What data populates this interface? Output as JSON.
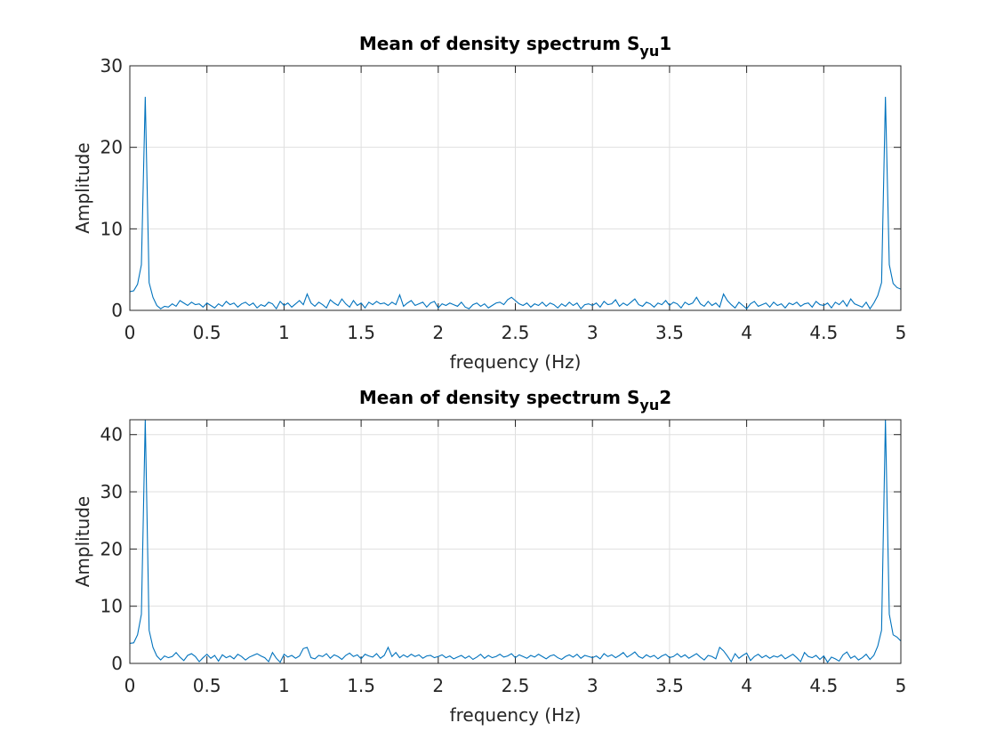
{
  "chart_data": [
    {
      "type": "line",
      "title": [
        "Mean of density spectrum S",
        "yu",
        "1"
      ],
      "xlabel": "frequency (Hz)",
      "ylabel": "Amplitude",
      "xlim": [
        0,
        5
      ],
      "xticks": [
        0,
        0.5,
        1,
        1.5,
        2,
        2.5,
        3,
        3.5,
        4,
        4.5,
        5
      ],
      "ylim": [
        0,
        30
      ],
      "yticks": [
        0,
        10,
        20,
        30
      ],
      "grid": true,
      "x": [
        0,
        0.025,
        0.05,
        0.075,
        0.1,
        0.125,
        0.15,
        0.175,
        0.2,
        0.225,
        0.25,
        0.275,
        0.3,
        0.325,
        0.35,
        0.375,
        0.4,
        0.425,
        0.45,
        0.475,
        0.5,
        0.525,
        0.55,
        0.575,
        0.6,
        0.625,
        0.65,
        0.675,
        0.7,
        0.725,
        0.75,
        0.775,
        0.8,
        0.825,
        0.85,
        0.875,
        0.9,
        0.925,
        0.95,
        0.975,
        1,
        1.025,
        1.05,
        1.075,
        1.1,
        1.125,
        1.15,
        1.175,
        1.2,
        1.225,
        1.25,
        1.275,
        1.3,
        1.325,
        1.35,
        1.375,
        1.4,
        1.425,
        1.45,
        1.475,
        1.5,
        1.525,
        1.55,
        1.575,
        1.6,
        1.625,
        1.65,
        1.675,
        1.7,
        1.725,
        1.75,
        1.775,
        1.8,
        1.825,
        1.85,
        1.875,
        1.9,
        1.925,
        1.95,
        1.975,
        2,
        2.025,
        2.05,
        2.075,
        2.1,
        2.125,
        2.15,
        2.175,
        2.2,
        2.225,
        2.25,
        2.275,
        2.3,
        2.325,
        2.35,
        2.375,
        2.4,
        2.425,
        2.45,
        2.475,
        2.5,
        2.525,
        2.55,
        2.575,
        2.6,
        2.625,
        2.65,
        2.675,
        2.7,
        2.725,
        2.75,
        2.775,
        2.8,
        2.825,
        2.85,
        2.875,
        2.9,
        2.925,
        2.95,
        2.975,
        3,
        3.025,
        3.05,
        3.075,
        3.1,
        3.125,
        3.15,
        3.175,
        3.2,
        3.225,
        3.25,
        3.275,
        3.3,
        3.325,
        3.35,
        3.375,
        3.4,
        3.425,
        3.45,
        3.475,
        3.5,
        3.525,
        3.55,
        3.575,
        3.6,
        3.625,
        3.65,
        3.675,
        3.7,
        3.725,
        3.75,
        3.775,
        3.8,
        3.825,
        3.85,
        3.875,
        3.9,
        3.925,
        3.95,
        3.975,
        4,
        4.025,
        4.05,
        4.075,
        4.1,
        4.125,
        4.15,
        4.175,
        4.2,
        4.225,
        4.25,
        4.275,
        4.3,
        4.325,
        4.35,
        4.375,
        4.4,
        4.425,
        4.45,
        4.475,
        4.5,
        4.525,
        4.55,
        4.575,
        4.6,
        4.625,
        4.65,
        4.675,
        4.7,
        4.725,
        4.75,
        4.775,
        4.8,
        4.825,
        4.85,
        4.875,
        4.9,
        4.925,
        4.95,
        4.975,
        5
      ],
      "series": [
        {
          "color": "#0072bd",
          "values": [
            2.3,
            2.4,
            3.2,
            5.6,
            26.2,
            3.4,
            1.6,
            0.6,
            0.2,
            0.5,
            0.4,
            0.8,
            0.5,
            1.2,
            0.9,
            0.6,
            1.0,
            0.7,
            0.8,
            0.4,
            0.9,
            0.6,
            0.3,
            0.8,
            0.5,
            1.1,
            0.7,
            0.9,
            0.4,
            0.8,
            1.0,
            0.6,
            0.9,
            0.3,
            0.7,
            0.5,
            1.0,
            0.8,
            0.2,
            1.1,
            0.6,
            0.9,
            0.4,
            0.8,
            1.2,
            0.7,
            2.0,
            0.9,
            0.5,
            1.0,
            0.7,
            0.3,
            1.3,
            0.9,
            0.6,
            1.4,
            0.8,
            0.4,
            1.2,
            0.6,
            0.9,
            0.3,
            1.0,
            0.7,
            1.1,
            0.8,
            0.9,
            0.6,
            1.0,
            0.7,
            1.9,
            0.5,
            0.9,
            1.2,
            0.6,
            0.8,
            1.0,
            0.4,
            0.9,
            1.1,
            0.3,
            0.8,
            0.6,
            0.9,
            0.7,
            0.5,
            1.0,
            0.4,
            0.2,
            0.7,
            0.9,
            0.5,
            0.8,
            0.3,
            0.6,
            0.9,
            1.0,
            0.7,
            1.3,
            1.6,
            1.2,
            0.8,
            0.6,
            0.9,
            0.4,
            0.8,
            0.6,
            1.0,
            0.5,
            0.9,
            0.7,
            0.3,
            0.8,
            0.5,
            1.0,
            0.6,
            0.9,
            0.2,
            0.7,
            0.8,
            0.6,
            0.9,
            0.4,
            1.1,
            0.7,
            0.8,
            1.3,
            0.5,
            0.9,
            0.6,
            1.0,
            1.4,
            0.7,
            0.5,
            1.0,
            0.8,
            0.4,
            0.9,
            0.7,
            1.2,
            0.6,
            1.0,
            0.8,
            0.3,
            1.0,
            0.7,
            0.9,
            1.6,
            0.8,
            0.5,
            1.1,
            0.6,
            0.9,
            0.4,
            2.0,
            1.2,
            0.7,
            0.3,
            1.0,
            0.6,
            0.2,
            0.8,
            1.1,
            0.5,
            0.7,
            0.9,
            0.4,
            1.0,
            0.6,
            0.8,
            0.3,
            0.9,
            0.7,
            1.0,
            0.5,
            0.8,
            0.9,
            0.4,
            1.1,
            0.7,
            0.6,
            0.9,
            0.3,
            1.0,
            0.7,
            1.2,
            0.5,
            1.4,
            0.8,
            0.6,
            0.4,
            1.0,
            0.2,
            0.9,
            1.8,
            3.4,
            26.2,
            5.6,
            3.3,
            2.8,
            2.6
          ]
        }
      ]
    },
    {
      "type": "line",
      "title": [
        "Mean of density spectrum S",
        "yu",
        "2"
      ],
      "xlabel": "frequency (Hz)",
      "ylabel": "Amplitude",
      "xlim": [
        0,
        5
      ],
      "xticks": [
        0,
        0.5,
        1,
        1.5,
        2,
        2.5,
        3,
        3.5,
        4,
        4.5,
        5
      ],
      "ylim": [
        0,
        42.6
      ],
      "yticks": [
        0,
        10,
        20,
        30,
        40
      ],
      "grid": true,
      "x": [
        0,
        0.025,
        0.05,
        0.075,
        0.1,
        0.125,
        0.15,
        0.175,
        0.2,
        0.225,
        0.25,
        0.275,
        0.3,
        0.325,
        0.35,
        0.375,
        0.4,
        0.425,
        0.45,
        0.475,
        0.5,
        0.525,
        0.55,
        0.575,
        0.6,
        0.625,
        0.65,
        0.675,
        0.7,
        0.725,
        0.75,
        0.775,
        0.8,
        0.825,
        0.85,
        0.875,
        0.9,
        0.925,
        0.95,
        0.975,
        1,
        1.025,
        1.05,
        1.075,
        1.1,
        1.125,
        1.15,
        1.175,
        1.2,
        1.225,
        1.25,
        1.275,
        1.3,
        1.325,
        1.35,
        1.375,
        1.4,
        1.425,
        1.45,
        1.475,
        1.5,
        1.525,
        1.55,
        1.575,
        1.6,
        1.625,
        1.65,
        1.675,
        1.7,
        1.725,
        1.75,
        1.775,
        1.8,
        1.825,
        1.85,
        1.875,
        1.9,
        1.925,
        1.95,
        1.975,
        2,
        2.025,
        2.05,
        2.075,
        2.1,
        2.125,
        2.15,
        2.175,
        2.2,
        2.225,
        2.25,
        2.275,
        2.3,
        2.325,
        2.35,
        2.375,
        2.4,
        2.425,
        2.45,
        2.475,
        2.5,
        2.525,
        2.55,
        2.575,
        2.6,
        2.625,
        2.65,
        2.675,
        2.7,
        2.725,
        2.75,
        2.775,
        2.8,
        2.825,
        2.85,
        2.875,
        2.9,
        2.925,
        2.95,
        2.975,
        3,
        3.025,
        3.05,
        3.075,
        3.1,
        3.125,
        3.15,
        3.175,
        3.2,
        3.225,
        3.25,
        3.275,
        3.3,
        3.325,
        3.35,
        3.375,
        3.4,
        3.425,
        3.45,
        3.475,
        3.5,
        3.525,
        3.55,
        3.575,
        3.6,
        3.625,
        3.65,
        3.675,
        3.7,
        3.725,
        3.75,
        3.775,
        3.8,
        3.825,
        3.85,
        3.875,
        3.9,
        3.925,
        3.95,
        3.975,
        4,
        4.025,
        4.05,
        4.075,
        4.1,
        4.125,
        4.15,
        4.175,
        4.2,
        4.225,
        4.25,
        4.275,
        4.3,
        4.325,
        4.35,
        4.375,
        4.4,
        4.425,
        4.45,
        4.475,
        4.5,
        4.525,
        4.55,
        4.575,
        4.6,
        4.625,
        4.65,
        4.675,
        4.7,
        4.725,
        4.75,
        4.775,
        4.8,
        4.825,
        4.85,
        4.875,
        4.9,
        4.925,
        4.95,
        4.975,
        5
      ],
      "series": [
        {
          "color": "#0072bd",
          "values": [
            3.5,
            3.6,
            5.0,
            8.6,
            42.6,
            5.8,
            2.8,
            1.3,
            0.6,
            1.3,
            1.0,
            1.2,
            1.9,
            1.1,
            0.5,
            1.4,
            1.7,
            1.2,
            0.3,
            1.0,
            1.6,
            0.9,
            1.4,
            0.4,
            1.5,
            1.0,
            1.3,
            0.8,
            1.6,
            1.2,
            0.6,
            1.1,
            1.4,
            1.7,
            1.3,
            1.0,
            0.3,
            1.9,
            0.9,
            0.2,
            1.6,
            1.1,
            1.4,
            0.9,
            1.3,
            2.6,
            2.8,
            1.0,
            0.8,
            1.4,
            1.2,
            1.7,
            0.9,
            1.5,
            1.2,
            0.7,
            1.4,
            1.8,
            1.2,
            1.5,
            0.8,
            1.6,
            1.3,
            1.1,
            1.7,
            0.9,
            1.4,
            2.8,
            1.2,
            1.9,
            1.0,
            1.5,
            1.1,
            1.6,
            1.2,
            1.5,
            0.9,
            1.3,
            1.4,
            1.0,
            1.2,
            1.5,
            1.0,
            1.3,
            0.8,
            1.1,
            1.4,
            0.9,
            1.3,
            0.7,
            1.1,
            1.6,
            0.9,
            1.4,
            1.0,
            1.2,
            1.6,
            1.1,
            1.3,
            1.7,
            1.0,
            1.5,
            1.2,
            0.9,
            1.4,
            1.1,
            1.6,
            1.2,
            0.8,
            1.3,
            1.5,
            1.0,
            0.7,
            1.2,
            1.5,
            1.1,
            1.6,
            0.9,
            1.4,
            1.2,
            1.0,
            1.3,
            0.8,
            1.7,
            1.2,
            1.5,
            1.0,
            1.4,
            1.9,
            1.1,
            1.5,
            2.0,
            1.2,
            0.9,
            1.5,
            1.1,
            1.4,
            0.8,
            1.3,
            1.6,
            1.0,
            1.2,
            1.7,
            1.1,
            1.5,
            0.9,
            1.3,
            1.7,
            1.1,
            0.6,
            1.4,
            1.2,
            0.8,
            2.8,
            2.2,
            1.3,
            0.3,
            1.7,
            0.9,
            1.4,
            1.8,
            0.5,
            1.2,
            1.6,
            1.0,
            1.4,
            0.9,
            1.3,
            1.1,
            1.5,
            0.8,
            1.2,
            1.6,
            1.0,
            0.3,
            1.9,
            1.2,
            1.0,
            1.4,
            0.7,
            1.3,
            0.2,
            1.1,
            0.8,
            0.4,
            1.5,
            2.0,
            0.9,
            1.3,
            0.6,
            1.0,
            1.6,
            0.7,
            1.4,
            3.0,
            5.8,
            42.6,
            8.6,
            5.0,
            4.6,
            3.9
          ]
        }
      ]
    }
  ]
}
